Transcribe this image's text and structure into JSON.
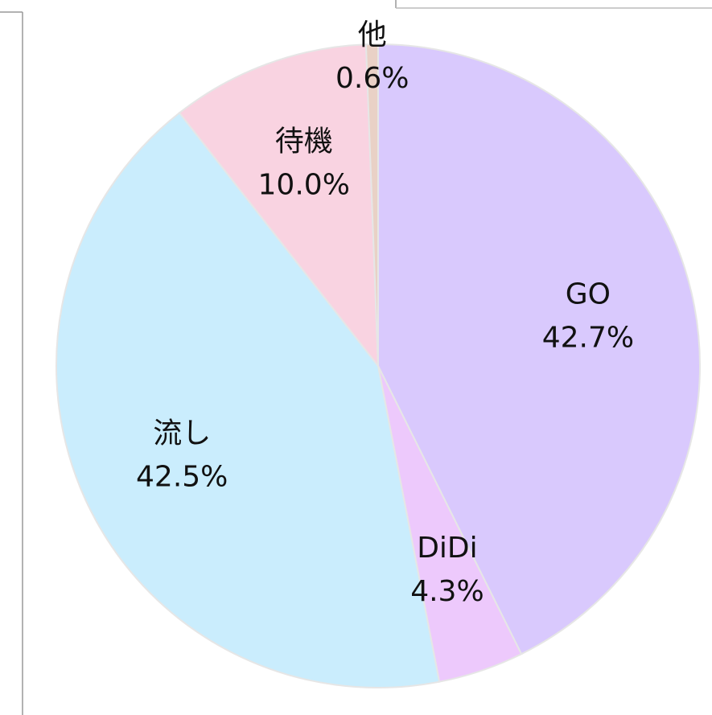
{
  "chart_data": {
    "type": "pie",
    "categories": [
      "GO",
      "DiDi",
      "流し",
      "待機",
      "他"
    ],
    "values": [
      42.7,
      4.3,
      42.5,
      10.0,
      0.6
    ],
    "value_labels": [
      "42.7%",
      "4.3%",
      "42.5%",
      "10.0%",
      "0.6%"
    ],
    "colors": [
      "#d9c9fd",
      "#edc9fc",
      "#caedfd",
      "#f9d3e1",
      "#e9d1c6"
    ]
  }
}
